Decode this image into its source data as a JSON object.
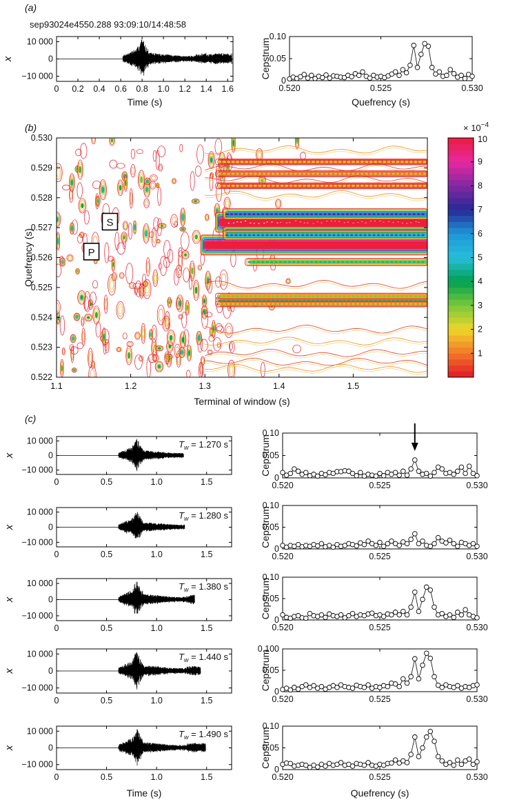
{
  "figure": {
    "panel_a_label": "(a)",
    "panel_b_label": "(b)",
    "panel_c_label": "(c)",
    "record_title": "sep93024e4550.288 93:09:10/14:48:58"
  },
  "chart_data": [
    {
      "id": "a-wave",
      "type": "line",
      "xlabel": "Time (s)",
      "ylabel": "x",
      "xlim": [
        0,
        1.65
      ],
      "ylim": [
        -13000,
        13000
      ],
      "xticks": [
        "0",
        "0.2",
        "0.4",
        "0.6",
        "0.8",
        "1.0",
        "1.2",
        "1.4",
        "1.6"
      ],
      "xtick_values": [
        0,
        0.2,
        0.4,
        0.6,
        0.8,
        1.0,
        1.2,
        1.4,
        1.6
      ],
      "yticks": [
        "10 000",
        "0",
        "−10 000"
      ],
      "ytick_values": [
        10000,
        0,
        -10000
      ],
      "signal_start_s": 0.62,
      "signal_end_s": 1.64,
      "peak_amplitude": 12000
    },
    {
      "id": "a-cep",
      "type": "line",
      "xlabel": "Quefrency (s)",
      "ylabel": "Cepstrum",
      "xlim": [
        0.52,
        0.53
      ],
      "ylim": [
        0,
        0.1
      ],
      "xticks": [
        "0.520",
        "0.525",
        "0.530"
      ],
      "xtick_values": [
        0.52,
        0.525,
        0.53
      ],
      "yticks": [
        "0.10",
        "0.05",
        "0"
      ],
      "ytick_values": [
        0.1,
        0.05,
        0
      ],
      "x": [
        0.52,
        0.5202,
        0.5204,
        0.5206,
        0.5208,
        0.521,
        0.5212,
        0.5214,
        0.5216,
        0.5218,
        0.522,
        0.5222,
        0.5224,
        0.5226,
        0.5228,
        0.523,
        0.5232,
        0.5234,
        0.5236,
        0.5238,
        0.524,
        0.5242,
        0.5244,
        0.5246,
        0.5248,
        0.525,
        0.5252,
        0.5254,
        0.5256,
        0.5258,
        0.526,
        0.5262,
        0.5264,
        0.5266,
        0.5268,
        0.527,
        0.5272,
        0.5274,
        0.5276,
        0.5278,
        0.528,
        0.5282,
        0.5284,
        0.5286,
        0.5288,
        0.529,
        0.5292,
        0.5294,
        0.5296,
        0.5298,
        0.53
      ],
      "y": [
        0.004,
        0.008,
        0.005,
        0.009,
        0.014,
        0.006,
        0.012,
        0.005,
        0.01,
        0.007,
        0.013,
        0.006,
        0.011,
        0.01,
        0.008,
        0.007,
        0.012,
        0.009,
        0.016,
        0.012,
        0.02,
        0.01,
        0.006,
        0.012,
        0.008,
        0.01,
        0.007,
        0.011,
        0.015,
        0.02,
        0.012,
        0.025,
        0.018,
        0.035,
        0.08,
        0.03,
        0.06,
        0.084,
        0.078,
        0.03,
        0.015,
        0.02,
        0.01,
        0.012,
        0.025,
        0.016,
        0.008,
        0.012,
        0.005,
        0.014,
        0.01
      ]
    },
    {
      "id": "b-contour",
      "type": "heatmap",
      "xlabel": "Terminal of window (s)",
      "ylabel": "Quefrency (s)",
      "xlim": [
        1.1,
        1.6
      ],
      "ylim": [
        0.522,
        0.53
      ],
      "xticks": [
        "1.1",
        "1.2",
        "1.3",
        "1.4",
        "1.5"
      ],
      "xtick_values": [
        1.1,
        1.2,
        1.3,
        1.4,
        1.5
      ],
      "yticks": [
        "0.530",
        "0.529",
        "0.528",
        "0.527",
        "0.526",
        "0.525",
        "0.524",
        "0.523",
        "0.522"
      ],
      "ytick_values": [
        0.53,
        0.529,
        0.528,
        0.527,
        0.526,
        0.525,
        0.524,
        0.523,
        0.522
      ],
      "colorbar_ticks": [
        "10",
        "9",
        "8",
        "7",
        "6",
        "5",
        "4",
        "3",
        "2",
        "1"
      ],
      "colorbar_tick_values": [
        10,
        9,
        8,
        7,
        6,
        5,
        4,
        3,
        2,
        1
      ],
      "colorbar_range": [
        0,
        10
      ],
      "colorbar_scale_label": "× 10",
      "colorbar_scale_exp": "−4",
      "annotations": [
        {
          "text": "P",
          "x": 1.147,
          "y": 0.5262
        },
        {
          "text": "S",
          "x": 1.172,
          "y": 0.5272
        }
      ],
      "bands": [
        {
          "q": 0.52718,
          "x_start": 1.32,
          "level": 10
        },
        {
          "q": 0.52642,
          "x_start": 1.3,
          "level": 10
        },
        {
          "q": 0.52685,
          "x_start": 1.33,
          "level": 6
        },
        {
          "q": 0.52675,
          "x_start": 1.33,
          "level": 5
        },
        {
          "q": 0.52745,
          "x_start": 1.33,
          "level": 6
        },
        {
          "q": 0.52585,
          "x_start": 1.36,
          "level": 3
        },
        {
          "q": 0.52455,
          "x_start": 1.32,
          "level": 3
        },
        {
          "q": 0.52471,
          "x_start": 1.32,
          "level": 1.5
        },
        {
          "q": 0.52445,
          "x_start": 1.32,
          "level": 1
        },
        {
          "q": 0.5292,
          "x_start": 1.32,
          "level": 0.5
        },
        {
          "q": 0.5288,
          "x_start": 1.32,
          "level": 0.8
        },
        {
          "q": 0.5284,
          "x_start": 1.32,
          "level": 0.5
        }
      ]
    },
    {
      "id": "c1-wave",
      "type": "line",
      "ylabel": "x",
      "xlabel": "",
      "xlim": [
        0,
        1.75
      ],
      "ylim": [
        -13000,
        13000
      ],
      "xticks": [
        "0",
        "0.5",
        "1.0",
        "1.5"
      ],
      "xtick_values": [
        0,
        0.5,
        1.0,
        1.5
      ],
      "yticks": [
        "10 000",
        "0",
        "−10 000"
      ],
      "ytick_values": [
        10000,
        0,
        -10000
      ],
      "tw_prefix": "T",
      "tw_sub": "w",
      "tw_value": " = 1.270 s",
      "signal_start_s": 0.62,
      "signal_end_s": 1.27,
      "peak_amplitude": 11500
    },
    {
      "id": "c1-cep",
      "type": "line",
      "ylabel": "Cepstrum",
      "xlabel": "",
      "xlim": [
        0.52,
        0.53
      ],
      "ylim": [
        0,
        0.1
      ],
      "xticks": [
        "0.520",
        "0.525",
        "0.530"
      ],
      "xtick_values": [
        0.52,
        0.525,
        0.53
      ],
      "yticks": [
        "0.10",
        "0.05",
        "0"
      ],
      "ytick_values": [
        0.1,
        0.05,
        0
      ],
      "arrow_x": 0.5268,
      "x": [
        0.52,
        0.5202,
        0.5204,
        0.5206,
        0.5208,
        0.521,
        0.5212,
        0.5214,
        0.5216,
        0.5218,
        0.522,
        0.5222,
        0.5224,
        0.5226,
        0.5228,
        0.523,
        0.5232,
        0.5234,
        0.5236,
        0.5238,
        0.524,
        0.5242,
        0.5244,
        0.5246,
        0.5248,
        0.525,
        0.5252,
        0.5254,
        0.5256,
        0.5258,
        0.526,
        0.5262,
        0.5264,
        0.5266,
        0.5268,
        0.527,
        0.5272,
        0.5274,
        0.5276,
        0.5278,
        0.528,
        0.5282,
        0.5284,
        0.5286,
        0.5288,
        0.529,
        0.5292,
        0.5294,
        0.5296,
        0.5298,
        0.53
      ],
      "y": [
        0.012,
        0.006,
        0.01,
        0.02,
        0.015,
        0.008,
        0.012,
        0.005,
        0.008,
        0.004,
        0.01,
        0.007,
        0.012,
        0.01,
        0.014,
        0.014,
        0.016,
        0.015,
        0.01,
        0.005,
        0.012,
        0.004,
        0.008,
        0.006,
        0.004,
        0.01,
        0.005,
        0.012,
        0.008,
        0.012,
        0.006,
        0.015,
        0.006,
        0.02,
        0.04,
        0.015,
        0.008,
        0.01,
        0.004,
        0.012,
        0.024,
        0.02,
        0.01,
        0.012,
        0.008,
        0.015,
        0.024,
        0.01,
        0.026,
        0.01,
        0.005
      ]
    },
    {
      "id": "c2-wave",
      "type": "line",
      "ylabel": "x",
      "xlabel": "",
      "xlim": [
        0,
        1.75
      ],
      "ylim": [
        -13000,
        13000
      ],
      "xticks": [
        "0",
        "0.5",
        "1.0",
        "1.5"
      ],
      "xtick_values": [
        0,
        0.5,
        1.0,
        1.5
      ],
      "yticks": [
        "10 000",
        "0",
        "−10 000"
      ],
      "ytick_values": [
        10000,
        0,
        -10000
      ],
      "tw_prefix": "T",
      "tw_sub": "w",
      "tw_value": " = 1.280 s",
      "signal_start_s": 0.62,
      "signal_end_s": 1.28,
      "peak_amplitude": 11500
    },
    {
      "id": "c2-cep",
      "type": "line",
      "ylabel": "Cepstrum",
      "xlabel": "",
      "xlim": [
        0.52,
        0.53
      ],
      "ylim": [
        0,
        0.1
      ],
      "xticks": [
        "0.520",
        "0.525",
        "0.530"
      ],
      "xtick_values": [
        0.52,
        0.525,
        0.53
      ],
      "yticks": [
        "0.10",
        "0.05",
        "0"
      ],
      "ytick_values": [
        0.1,
        0.05,
        0
      ],
      "x": [
        0.52,
        0.5202,
        0.5204,
        0.5206,
        0.5208,
        0.521,
        0.5212,
        0.5214,
        0.5216,
        0.5218,
        0.522,
        0.5222,
        0.5224,
        0.5226,
        0.5228,
        0.523,
        0.5232,
        0.5234,
        0.5236,
        0.5238,
        0.524,
        0.5242,
        0.5244,
        0.5246,
        0.5248,
        0.525,
        0.5252,
        0.5254,
        0.5256,
        0.5258,
        0.526,
        0.5262,
        0.5264,
        0.5266,
        0.5268,
        0.527,
        0.5272,
        0.5274,
        0.5276,
        0.5278,
        0.528,
        0.5282,
        0.5284,
        0.5286,
        0.5288,
        0.529,
        0.5292,
        0.5294,
        0.5296,
        0.5298,
        0.53
      ],
      "y": [
        0.008,
        0.004,
        0.008,
        0.006,
        0.01,
        0.005,
        0.008,
        0.006,
        0.01,
        0.007,
        0.012,
        0.005,
        0.008,
        0.004,
        0.01,
        0.006,
        0.008,
        0.012,
        0.01,
        0.007,
        0.014,
        0.01,
        0.018,
        0.012,
        0.008,
        0.015,
        0.006,
        0.012,
        0.018,
        0.012,
        0.008,
        0.016,
        0.012,
        0.022,
        0.035,
        0.012,
        0.018,
        0.008,
        0.006,
        0.012,
        0.026,
        0.018,
        0.014,
        0.02,
        0.012,
        0.006,
        0.015,
        0.012,
        0.008,
        0.012,
        0.006
      ]
    },
    {
      "id": "c3-wave",
      "type": "line",
      "ylabel": "x",
      "xlabel": "",
      "xlim": [
        0,
        1.75
      ],
      "ylim": [
        -13000,
        13000
      ],
      "xticks": [
        "0",
        "0.5",
        "1.0",
        "1.5"
      ],
      "xtick_values": [
        0,
        0.5,
        1.0,
        1.5
      ],
      "yticks": [
        "10 000",
        "0",
        "−10 000"
      ],
      "ytick_values": [
        10000,
        0,
        -10000
      ],
      "tw_prefix": "T",
      "tw_sub": "w",
      "tw_value": " = 1.380 s",
      "signal_start_s": 0.62,
      "signal_end_s": 1.38,
      "peak_amplitude": 11500
    },
    {
      "id": "c3-cep",
      "type": "line",
      "ylabel": "Cepstrum",
      "xlabel": "",
      "xlim": [
        0.52,
        0.53
      ],
      "ylim": [
        0,
        0.1
      ],
      "xticks": [
        "0.520",
        "0.525",
        "0.530"
      ],
      "xtick_values": [
        0.52,
        0.525,
        0.53
      ],
      "yticks": [
        "0.10",
        "0.05",
        "0"
      ],
      "ytick_values": [
        0.1,
        0.05,
        0
      ],
      "x": [
        0.52,
        0.5202,
        0.5204,
        0.5206,
        0.5208,
        0.521,
        0.5212,
        0.5214,
        0.5216,
        0.5218,
        0.522,
        0.5222,
        0.5224,
        0.5226,
        0.5228,
        0.523,
        0.5232,
        0.5234,
        0.5236,
        0.5238,
        0.524,
        0.5242,
        0.5244,
        0.5246,
        0.5248,
        0.525,
        0.5252,
        0.5254,
        0.5256,
        0.5258,
        0.526,
        0.5262,
        0.5264,
        0.5266,
        0.5268,
        0.527,
        0.5272,
        0.5274,
        0.5276,
        0.5278,
        0.528,
        0.5282,
        0.5284,
        0.5286,
        0.5288,
        0.529,
        0.5292,
        0.5294,
        0.5296,
        0.5298,
        0.53
      ],
      "y": [
        0.012,
        0.006,
        0.004,
        0.008,
        0.01,
        0.005,
        0.004,
        0.015,
        0.01,
        0.008,
        0.012,
        0.006,
        0.014,
        0.01,
        0.008,
        0.012,
        0.005,
        0.01,
        0.015,
        0.008,
        0.012,
        0.01,
        0.014,
        0.016,
        0.01,
        0.012,
        0.008,
        0.014,
        0.012,
        0.018,
        0.012,
        0.02,
        0.012,
        0.03,
        0.065,
        0.02,
        0.048,
        0.077,
        0.07,
        0.03,
        0.012,
        0.015,
        0.008,
        0.012,
        0.006,
        0.018,
        0.012,
        0.024,
        0.012,
        0.008,
        0.005
      ]
    },
    {
      "id": "c4-wave",
      "type": "line",
      "ylabel": "x",
      "xlabel": "",
      "xlim": [
        0,
        1.75
      ],
      "ylim": [
        -13000,
        13000
      ],
      "xticks": [
        "0",
        "0.5",
        "1.0",
        "1.5"
      ],
      "xtick_values": [
        0,
        0.5,
        1.0,
        1.5
      ],
      "yticks": [
        "10 000",
        "0",
        "−10 000"
      ],
      "ytick_values": [
        10000,
        0,
        -10000
      ],
      "tw_prefix": "T",
      "tw_sub": "w",
      "tw_value": " = 1.440 s",
      "signal_start_s": 0.62,
      "signal_end_s": 1.44,
      "peak_amplitude": 11500
    },
    {
      "id": "c4-cep",
      "type": "line",
      "ylabel": "Cepstrum",
      "xlabel": "",
      "xlim": [
        0.52,
        0.53
      ],
      "ylim": [
        0,
        0.1
      ],
      "xticks": [
        "0.520",
        "0.525",
        "0.530"
      ],
      "xtick_values": [
        0.52,
        0.525,
        0.53
      ],
      "yticks": [
        "0.100",
        "0.05",
        "0"
      ],
      "ytick_values": [
        0.1,
        0.05,
        0
      ],
      "x": [
        0.52,
        0.5202,
        0.5204,
        0.5206,
        0.5208,
        0.521,
        0.5212,
        0.5214,
        0.5216,
        0.5218,
        0.522,
        0.5222,
        0.5224,
        0.5226,
        0.5228,
        0.523,
        0.5232,
        0.5234,
        0.5236,
        0.5238,
        0.524,
        0.5242,
        0.5244,
        0.5246,
        0.5248,
        0.525,
        0.5252,
        0.5254,
        0.5256,
        0.5258,
        0.526,
        0.5262,
        0.5264,
        0.5266,
        0.5268,
        0.527,
        0.5272,
        0.5274,
        0.5276,
        0.5278,
        0.528,
        0.5282,
        0.5284,
        0.5286,
        0.5288,
        0.529,
        0.5292,
        0.5294,
        0.5296,
        0.5298,
        0.53
      ],
      "y": [
        0.005,
        0.008,
        0.004,
        0.01,
        0.006,
        0.012,
        0.016,
        0.01,
        0.014,
        0.008,
        0.012,
        0.006,
        0.01,
        0.014,
        0.01,
        0.016,
        0.012,
        0.01,
        0.008,
        0.015,
        0.012,
        0.01,
        0.016,
        0.008,
        0.012,
        0.01,
        0.014,
        0.012,
        0.02,
        0.018,
        0.012,
        0.03,
        0.02,
        0.035,
        0.077,
        0.03,
        0.062,
        0.09,
        0.078,
        0.035,
        0.015,
        0.01,
        0.016,
        0.012,
        0.01,
        0.014,
        0.008,
        0.012,
        0.01,
        0.014,
        0.016
      ]
    },
    {
      "id": "c5-wave",
      "type": "line",
      "ylabel": "x",
      "xlabel": "Time (s)",
      "xlim": [
        0,
        1.75
      ],
      "ylim": [
        -13000,
        13000
      ],
      "xticks": [
        "0",
        "0.5",
        "1.0",
        "1.5"
      ],
      "xtick_values": [
        0,
        0.5,
        1.0,
        1.5
      ],
      "yticks": [
        "10 000",
        "0",
        "−10 000"
      ],
      "ytick_values": [
        10000,
        0,
        -10000
      ],
      "tw_prefix": "T",
      "tw_sub": "w",
      "tw_value": " = 1.490 s",
      "signal_start_s": 0.62,
      "signal_end_s": 1.49,
      "peak_amplitude": 11500
    },
    {
      "id": "c5-cep",
      "type": "line",
      "ylabel": "Cepstrum",
      "xlabel": "Quefrency (s)",
      "xlim": [
        0.52,
        0.53
      ],
      "ylim": [
        0,
        0.1
      ],
      "xticks": [
        "0.520",
        "0.525",
        "0.530"
      ],
      "xtick_values": [
        0.52,
        0.525,
        0.53
      ],
      "yticks": [
        "0.10",
        "0.05",
        "0"
      ],
      "ytick_values": [
        0.1,
        0.05,
        0
      ],
      "x": [
        0.52,
        0.5202,
        0.5204,
        0.5206,
        0.5208,
        0.521,
        0.5212,
        0.5214,
        0.5216,
        0.5218,
        0.522,
        0.5222,
        0.5224,
        0.5226,
        0.5228,
        0.523,
        0.5232,
        0.5234,
        0.5236,
        0.5238,
        0.524,
        0.5242,
        0.5244,
        0.5246,
        0.5248,
        0.525,
        0.5252,
        0.5254,
        0.5256,
        0.5258,
        0.526,
        0.5262,
        0.5264,
        0.5266,
        0.5268,
        0.527,
        0.5272,
        0.5274,
        0.5276,
        0.5278,
        0.528,
        0.5282,
        0.5284,
        0.5286,
        0.5288,
        0.529,
        0.5292,
        0.5294,
        0.5296,
        0.5298,
        0.53
      ],
      "y": [
        0.012,
        0.015,
        0.014,
        0.008,
        0.01,
        0.012,
        0.01,
        0.005,
        0.01,
        0.006,
        0.012,
        0.008,
        0.014,
        0.01,
        0.012,
        0.016,
        0.01,
        0.012,
        0.008,
        0.014,
        0.012,
        0.01,
        0.016,
        0.01,
        0.008,
        0.012,
        0.01,
        0.014,
        0.015,
        0.022,
        0.015,
        0.02,
        0.016,
        0.035,
        0.075,
        0.03,
        0.05,
        0.075,
        0.088,
        0.065,
        0.03,
        0.02,
        0.012,
        0.016,
        0.01,
        0.022,
        0.012,
        0.02,
        0.024,
        0.012,
        0.018
      ]
    }
  ]
}
